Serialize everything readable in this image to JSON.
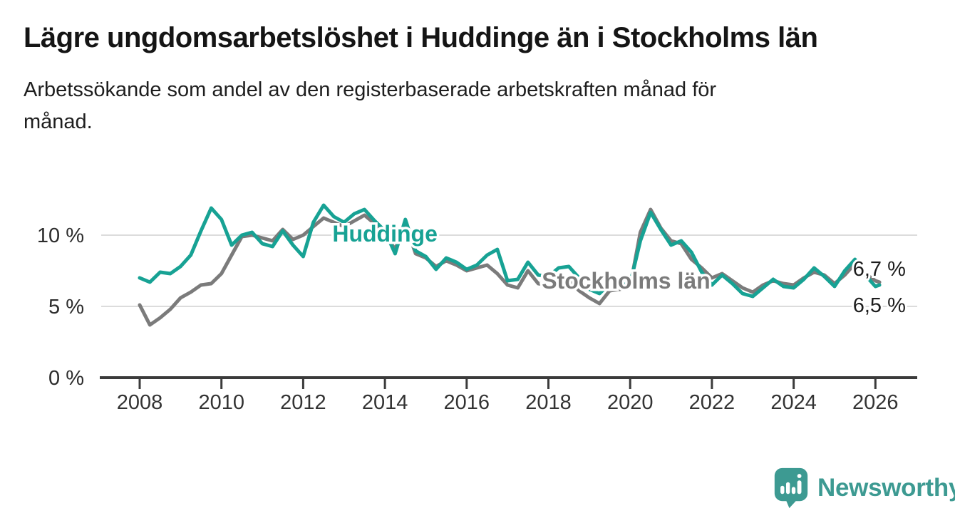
{
  "header": {
    "title": "Lägre ungdomsarbetslöshet i Huddinge än i Stockholms län",
    "subtitle": "Arbetssökande som andel av den registerbaserade arbetskraften månad för månad."
  },
  "footer": {
    "brand": "Newsworthy",
    "brand_color": "#3d9a92",
    "logo_icon": "speech-bubble-bar-chart-exclamation"
  },
  "chart_data": {
    "type": "line",
    "title": "",
    "xlabel": "",
    "ylabel": "",
    "grid": "horizontal",
    "legend_position": "inline-labels",
    "xlim": [
      2007.1,
      2027.0
    ],
    "ylim": [
      0,
      13
    ],
    "x_ticks": [
      {
        "value": 2008,
        "label": "2008"
      },
      {
        "value": 2010,
        "label": "2010"
      },
      {
        "value": 2012,
        "label": "2012"
      },
      {
        "value": 2014,
        "label": "2014"
      },
      {
        "value": 2016,
        "label": "2016"
      },
      {
        "value": 2018,
        "label": "2018"
      },
      {
        "value": 2020,
        "label": "2020"
      },
      {
        "value": 2022,
        "label": "2022"
      },
      {
        "value": 2024,
        "label": "2024"
      },
      {
        "value": 2026,
        "label": "2026"
      }
    ],
    "y_ticks": [
      {
        "value": 0,
        "label": "0 %"
      },
      {
        "value": 5,
        "label": "5 %"
      },
      {
        "value": 10,
        "label": "10 %"
      }
    ],
    "x": [
      2008.0,
      2008.25,
      2008.5,
      2008.75,
      2009.0,
      2009.25,
      2009.5,
      2009.75,
      2010.0,
      2010.25,
      2010.5,
      2010.75,
      2011.0,
      2011.25,
      2011.5,
      2011.75,
      2012.0,
      2012.25,
      2012.5,
      2012.75,
      2013.0,
      2013.25,
      2013.5,
      2013.75,
      2014.0,
      2014.25,
      2014.5,
      2014.75,
      2015.0,
      2015.25,
      2015.5,
      2015.75,
      2016.0,
      2016.25,
      2016.5,
      2016.75,
      2017.0,
      2017.25,
      2017.5,
      2017.75,
      2018.0,
      2018.25,
      2018.5,
      2018.75,
      2019.0,
      2019.25,
      2019.5,
      2019.75,
      2020.0,
      2020.25,
      2020.5,
      2020.75,
      2021.0,
      2021.25,
      2021.5,
      2021.75,
      2022.0,
      2022.25,
      2022.5,
      2022.75,
      2023.0,
      2023.25,
      2023.5,
      2023.75,
      2024.0,
      2024.25,
      2024.5,
      2024.75,
      2025.0,
      2025.25,
      2025.5,
      2025.75,
      2026.0,
      2026.1
    ],
    "series": [
      {
        "name": "Huddinge",
        "color": "#17a294",
        "final_value_label": "6,5 %",
        "values": [
          7.0,
          6.7,
          7.4,
          7.3,
          7.8,
          8.6,
          10.3,
          11.9,
          11.1,
          9.3,
          10.0,
          10.2,
          9.4,
          9.2,
          10.3,
          9.3,
          8.5,
          10.9,
          12.1,
          11.3,
          10.9,
          11.5,
          11.8,
          11.0,
          10.3,
          8.7,
          11.1,
          8.9,
          8.5,
          7.6,
          8.4,
          8.1,
          7.6,
          7.9,
          8.6,
          9.0,
          6.8,
          6.9,
          8.1,
          7.2,
          7.1,
          7.7,
          7.8,
          7.0,
          6.2,
          5.9,
          6.6,
          6.5,
          6.6,
          9.6,
          11.6,
          10.4,
          9.3,
          9.6,
          8.8,
          7.4,
          6.5,
          7.2,
          6.6,
          5.9,
          5.7,
          6.3,
          6.9,
          6.4,
          6.3,
          6.9,
          7.7,
          7.1,
          6.4,
          7.5,
          8.3,
          7.2,
          6.4,
          6.5
        ]
      },
      {
        "name": "Stockholms län",
        "color": "#7b7b7b",
        "final_value_label": "6,7 %",
        "values": [
          5.1,
          3.7,
          4.2,
          4.8,
          5.6,
          6.0,
          6.5,
          6.6,
          7.3,
          8.6,
          9.9,
          10.0,
          9.8,
          9.6,
          10.4,
          9.7,
          10.0,
          10.6,
          11.2,
          10.9,
          10.6,
          11.0,
          11.4,
          10.8,
          10.1,
          9.0,
          10.8,
          8.7,
          8.4,
          7.8,
          8.2,
          7.9,
          7.5,
          7.7,
          7.9,
          7.3,
          6.5,
          6.3,
          7.5,
          6.6,
          6.5,
          7.0,
          6.9,
          6.1,
          5.6,
          5.2,
          6.1,
          6.2,
          6.4,
          10.2,
          11.8,
          10.5,
          9.6,
          9.4,
          8.3,
          7.7,
          7.0,
          7.3,
          6.8,
          6.3,
          6.0,
          6.5,
          6.8,
          6.6,
          6.5,
          7.0,
          7.4,
          7.2,
          6.6,
          7.2,
          8.0,
          7.3,
          6.8,
          6.7
        ]
      }
    ],
    "annotations": {
      "series_labels": [
        {
          "text": "Huddinge",
          "x": 2014.0,
          "y": 10.1,
          "color": "#17a294"
        },
        {
          "text": "Stockholms län",
          "x": 2019.9,
          "y": 6.8,
          "color": "#7b7b7b"
        }
      ],
      "end_labels": [
        {
          "text": "6,7 %",
          "x": 2025.45,
          "y": 7.65,
          "color": "#1c1c1c"
        },
        {
          "text": "6,5 %",
          "x": 2025.45,
          "y": 5.1,
          "color": "#1c1c1c"
        }
      ]
    }
  }
}
